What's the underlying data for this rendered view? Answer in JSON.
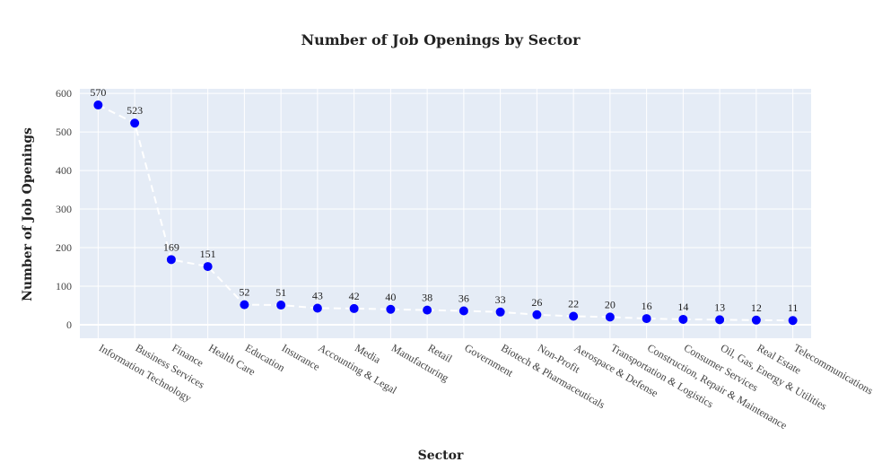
{
  "chart_data": {
    "type": "line",
    "title": "Number of Job Openings by Sector",
    "xlabel": "Sector",
    "ylabel": "Number of Job Openings",
    "ylim": [
      -35,
      612
    ],
    "yticks": [
      0,
      100,
      200,
      300,
      400,
      500,
      600
    ],
    "grid": true,
    "legend": "none",
    "colors": {
      "plot_bg": "#e5ecf6",
      "grid": "#ffffff",
      "marker": "#0000ff",
      "line": "#ffffff"
    },
    "categories": [
      "Information Technology",
      "Business Services",
      "Finance",
      "Health Care",
      "Education",
      "Insurance",
      "Accounting & Legal",
      "Media",
      "Manufacturing",
      "Retail",
      "Government",
      "Biotech & Pharmaceuticals",
      "Non-Profit",
      "Aerospace & Defense",
      "Transportation & Logistics",
      "Construction, Repair & Maintenance",
      "Consumer Services",
      "Oil, Gas, Energy & Utilities",
      "Real Estate",
      "Telecommunications"
    ],
    "values": [
      570,
      523,
      169,
      151,
      52,
      51,
      43,
      42,
      40,
      38,
      36,
      33,
      26,
      22,
      20,
      16,
      14,
      13,
      12,
      11
    ]
  }
}
